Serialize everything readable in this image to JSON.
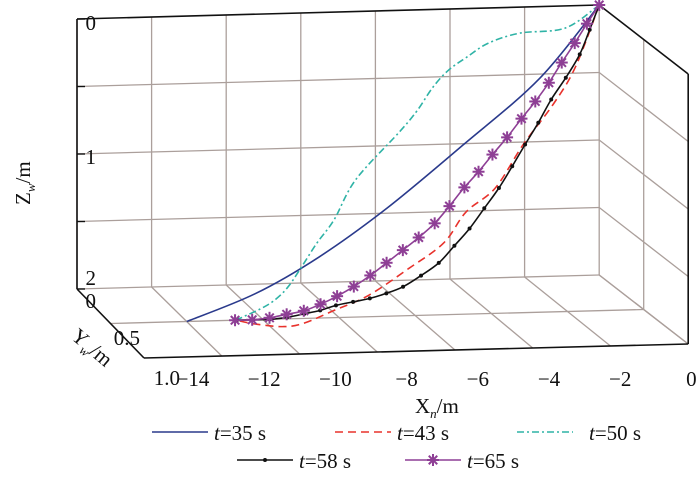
{
  "chart_data": {
    "type": "line3d",
    "title": "",
    "xlabel": {
      "main": "X",
      "sub": "n",
      "unit": "/m"
    },
    "ylabel": {
      "main": "Y",
      "sub": "w",
      "unit": "/m"
    },
    "zlabel": {
      "main": "Z",
      "sub": "w",
      "unit": "/m"
    },
    "xlim": [
      -14,
      0
    ],
    "ylim": [
      0,
      1.0
    ],
    "zlim": [
      0,
      2
    ],
    "z_reversed": true,
    "grid": true,
    "x_ticks": [
      "−14",
      "−12",
      "−10",
      "−8",
      "−6",
      "−4",
      "−2",
      "0"
    ],
    "x_tick_values": [
      -14,
      -12,
      -10,
      -8,
      -6,
      -4,
      -2,
      0
    ],
    "y_ticks": [
      "0",
      "0.5",
      "1.0"
    ],
    "z_ticks": [
      "0",
      "1",
      "2"
    ],
    "legend_position": "bottom",
    "series": [
      {
        "name": "t=35 s",
        "t": "t",
        "rest": "=35 s",
        "color": "#2a3a8c",
        "style": "solid",
        "marker": "none",
        "points": [
          [
            0,
            0
          ],
          [
            -1.87,
            0.47
          ],
          [
            -4.13,
            0.89
          ],
          [
            -6.36,
            1.29
          ],
          [
            -8.32,
            1.6
          ],
          [
            -10.12,
            1.83
          ],
          [
            -12.0,
            2.0
          ]
        ]
      },
      {
        "name": "t=43 s",
        "t": "t",
        "rest": "=43 s",
        "color": "#e8322c",
        "style": "dashed",
        "marker": "none",
        "points": [
          [
            0,
            0
          ],
          [
            -0.87,
            0.4
          ],
          [
            -1.6,
            0.64
          ],
          [
            -2.55,
            0.9
          ],
          [
            -3.45,
            1.18
          ],
          [
            -4.3,
            1.33
          ],
          [
            -5.0,
            1.53
          ],
          [
            -6.0,
            1.69
          ],
          [
            -7.15,
            1.86
          ],
          [
            -8.08,
            1.95
          ],
          [
            -8.92,
            2.03
          ],
          [
            -9.47,
            2.05
          ],
          [
            -10.18,
            2.03
          ],
          [
            -10.7,
            2.0
          ]
        ]
      },
      {
        "name": "t=50 s",
        "t": "t",
        "rest": "=50 s",
        "color": "#2fb3a6",
        "style": "dashdot",
        "marker": "none",
        "points": [
          [
            0,
            0
          ],
          [
            -1.0,
            0.145
          ],
          [
            -2.22,
            0.17
          ],
          [
            -3.1,
            0.23
          ],
          [
            -3.74,
            0.32
          ],
          [
            -4.26,
            0.4
          ],
          [
            -4.74,
            0.51
          ],
          [
            -5.24,
            0.66
          ],
          [
            -5.8,
            0.8
          ],
          [
            -7.1,
            1.1
          ],
          [
            -7.81,
            1.36
          ],
          [
            -8.34,
            1.51
          ],
          [
            -8.84,
            1.67
          ],
          [
            -9.27,
            1.8
          ],
          [
            -9.66,
            1.88
          ],
          [
            -10.03,
            1.93
          ],
          [
            -10.42,
            1.97
          ],
          [
            -10.7,
            2.0
          ]
        ]
      },
      {
        "name": "t=58 s",
        "t": "t",
        "rest": "=58 s",
        "color": "#111111",
        "style": "solid",
        "marker": "dot",
        "points": [
          [
            0,
            0
          ],
          [
            -0.35,
            0.16
          ],
          [
            -0.71,
            0.32
          ],
          [
            -1.17,
            0.47
          ],
          [
            -1.64,
            0.61
          ],
          [
            -2.07,
            0.76
          ],
          [
            -2.5,
            0.9
          ],
          [
            -2.92,
            1.04
          ],
          [
            -3.35,
            1.18
          ],
          [
            -3.81,
            1.31
          ],
          [
            -4.27,
            1.44
          ],
          [
            -4.73,
            1.55
          ],
          [
            -5.2,
            1.66
          ],
          [
            -5.71,
            1.74
          ],
          [
            -6.22,
            1.81
          ],
          [
            -6.68,
            1.85
          ],
          [
            -7.13,
            1.88
          ],
          [
            -7.58,
            1.9
          ],
          [
            -8.04,
            1.92
          ],
          [
            -8.47,
            1.95
          ],
          [
            -8.9,
            1.97
          ],
          [
            -9.36,
            1.99
          ],
          [
            -9.82,
            2.0
          ],
          [
            -10.25,
            2.0
          ],
          [
            -10.68,
            2.0
          ]
        ]
      },
      {
        "name": "t=65 s",
        "t": "t",
        "rest": "=65 s",
        "color": "#8e3f95",
        "style": "solid",
        "marker": "star",
        "points": [
          [
            0,
            0
          ],
          [
            -0.4,
            0.12
          ],
          [
            -0.8,
            0.245
          ],
          [
            -1.22,
            0.37
          ],
          [
            -1.64,
            0.5
          ],
          [
            -2.07,
            0.62
          ],
          [
            -2.5,
            0.73
          ],
          [
            -2.95,
            0.85
          ],
          [
            -3.4,
            0.96
          ],
          [
            -3.83,
            1.07
          ],
          [
            -4.26,
            1.17
          ],
          [
            -4.72,
            1.29
          ],
          [
            -5.17,
            1.4
          ],
          [
            -5.64,
            1.49
          ],
          [
            -6.1,
            1.57
          ],
          [
            -6.57,
            1.65
          ],
          [
            -7.04,
            1.73
          ],
          [
            -7.51,
            1.8
          ],
          [
            -7.98,
            1.86
          ],
          [
            -8.44,
            1.91
          ],
          [
            -8.9,
            1.95
          ],
          [
            -9.36,
            1.97
          ],
          [
            -9.82,
            1.99
          ],
          [
            -10.28,
            2.0
          ],
          [
            -10.73,
            2.0
          ]
        ]
      }
    ]
  }
}
